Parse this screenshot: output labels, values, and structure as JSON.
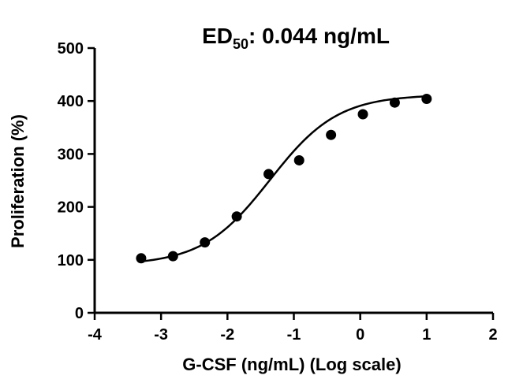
{
  "chart_data": {
    "type": "scatter",
    "title": {
      "prefix": "ED",
      "subscript": "50",
      "suffix": ": 0.044 ng/mL"
    },
    "xlabel": "G-CSF (ng/mL) (Log scale)",
    "ylabel": "Proliferation (%)",
    "xlim": [
      -4,
      2
    ],
    "ylim": [
      0,
      500
    ],
    "x_ticks": [
      -4,
      -3,
      -2,
      -1,
      0,
      1,
      2
    ],
    "y_ticks": [
      0,
      100,
      200,
      300,
      400,
      500
    ],
    "x_tick_labels": [
      "-4",
      "-3",
      "-2",
      "-1",
      "0",
      "1",
      "2"
    ],
    "y_tick_labels": [
      "0",
      "100",
      "200",
      "300",
      "400",
      "500"
    ],
    "grid": false,
    "legend": "none",
    "points": [
      {
        "x": -3.3,
        "y": 103
      },
      {
        "x": -2.82,
        "y": 107
      },
      {
        "x": -2.34,
        "y": 133
      },
      {
        "x": -1.86,
        "y": 182
      },
      {
        "x": -1.38,
        "y": 262
      },
      {
        "x": -0.92,
        "y": 288
      },
      {
        "x": -0.44,
        "y": 336
      },
      {
        "x": 0.04,
        "y": 375
      },
      {
        "x": 0.52,
        "y": 397
      },
      {
        "x": 1.0,
        "y": 404
      }
    ],
    "fit_curve": {
      "model": "four-parameter logistic",
      "bottom": 90,
      "top": 412,
      "log_ec50": -1.36,
      "hill_slope": 0.85,
      "x_range": [
        -3.3,
        1.0
      ]
    },
    "colors": {
      "marker": "#000000",
      "curve": "#000000",
      "axes": "#000000"
    }
  }
}
